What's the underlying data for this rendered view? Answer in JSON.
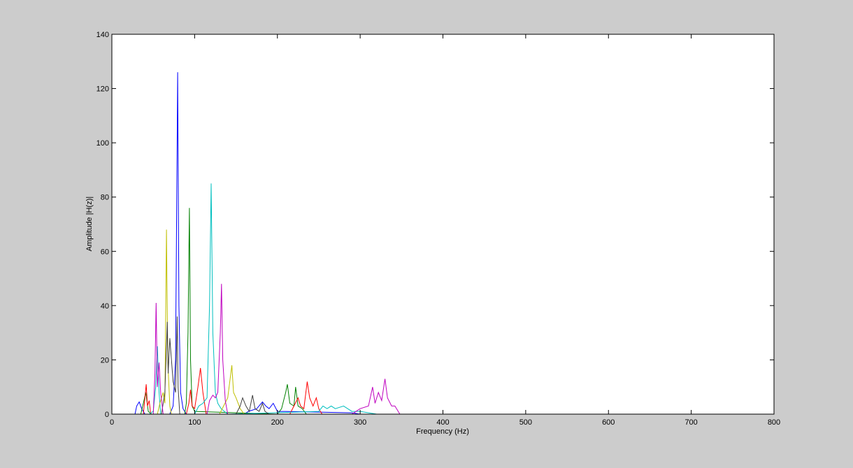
{
  "chart_data": {
    "type": "line",
    "title": "",
    "xlabel": "Frequency (Hz)",
    "ylabel": "Amplitude |H(z)|",
    "xlim": [
      0,
      800
    ],
    "ylim": [
      0,
      140
    ],
    "xticks": [
      0,
      100,
      200,
      300,
      400,
      500,
      600,
      700,
      800
    ],
    "yticks": [
      0,
      20,
      40,
      60,
      80,
      100,
      120,
      140
    ],
    "grid": false,
    "background": "#cccccc",
    "series": [
      {
        "color": "#0000ff",
        "points": [
          [
            0,
            0
          ],
          [
            28,
            0
          ],
          [
            30,
            3
          ],
          [
            33,
            4.5
          ],
          [
            36,
            2
          ],
          [
            40,
            0
          ],
          [
            70,
            0
          ],
          [
            74,
            3
          ],
          [
            77,
            20
          ],
          [
            79.5,
            126
          ],
          [
            81,
            40
          ],
          [
            83,
            8
          ],
          [
            86,
            2
          ],
          [
            90,
            0
          ],
          [
            160,
            0
          ],
          [
            165,
            1
          ],
          [
            175,
            2
          ],
          [
            182,
            4.5
          ],
          [
            186,
            3
          ],
          [
            190,
            2
          ],
          [
            195,
            4
          ],
          [
            200,
            1
          ],
          [
            210,
            1
          ],
          [
            290,
            0.5
          ],
          [
            300,
            0
          ],
          [
            775,
            0
          ]
        ]
      },
      {
        "color": "#008000",
        "points": [
          [
            0,
            0
          ],
          [
            35,
            0
          ],
          [
            38,
            4
          ],
          [
            41,
            8
          ],
          [
            44,
            1
          ],
          [
            48,
            0
          ],
          [
            88,
            0
          ],
          [
            90,
            4
          ],
          [
            92,
            30
          ],
          [
            93.7,
            76
          ],
          [
            95,
            20
          ],
          [
            97,
            3
          ],
          [
            100,
            1
          ],
          [
            200,
            0
          ],
          [
            205,
            2
          ],
          [
            210,
            8
          ],
          [
            212,
            11
          ],
          [
            215,
            4
          ],
          [
            220,
            3
          ],
          [
            222,
            10
          ],
          [
            225,
            3
          ],
          [
            230,
            2
          ],
          [
            235,
            0
          ],
          [
            775,
            0
          ]
        ]
      },
      {
        "color": "#ff0000",
        "points": [
          [
            0,
            0
          ],
          [
            38,
            0
          ],
          [
            40,
            6
          ],
          [
            41.5,
            11
          ],
          [
            43,
            3
          ],
          [
            45,
            5
          ],
          [
            47,
            0
          ],
          [
            90,
            0
          ],
          [
            93,
            4
          ],
          [
            95,
            9
          ],
          [
            97,
            3
          ],
          [
            100,
            2
          ],
          [
            104,
            10
          ],
          [
            107,
            17
          ],
          [
            110,
            8
          ],
          [
            114,
            0
          ],
          [
            215,
            0
          ],
          [
            220,
            3
          ],
          [
            225,
            6
          ],
          [
            228,
            3
          ],
          [
            232,
            2
          ],
          [
            236,
            12
          ],
          [
            239,
            6
          ],
          [
            243,
            3
          ],
          [
            247,
            6
          ],
          [
            250,
            2
          ],
          [
            254,
            0
          ],
          [
            775,
            0
          ]
        ]
      },
      {
        "color": "#00bfbf",
        "points": [
          [
            0,
            0
          ],
          [
            45,
            0
          ],
          [
            50,
            1
          ],
          [
            53,
            10
          ],
          [
            55,
            25
          ],
          [
            57,
            8
          ],
          [
            59,
            0
          ],
          [
            100,
            0
          ],
          [
            105,
            3
          ],
          [
            110,
            4
          ],
          [
            115,
            6
          ],
          [
            118,
            40
          ],
          [
            120,
            85
          ],
          [
            122,
            30
          ],
          [
            125,
            8
          ],
          [
            128,
            4
          ],
          [
            132,
            2
          ],
          [
            140,
            0
          ],
          [
            250,
            1
          ],
          [
            255,
            3
          ],
          [
            260,
            2
          ],
          [
            265,
            3
          ],
          [
            270,
            2
          ],
          [
            280,
            3
          ],
          [
            290,
            1
          ],
          [
            300,
            1
          ],
          [
            320,
            0
          ],
          [
            775,
            0
          ]
        ]
      },
      {
        "color": "#bfbf00",
        "points": [
          [
            0,
            0
          ],
          [
            55,
            0
          ],
          [
            58,
            4
          ],
          [
            62,
            8
          ],
          [
            64,
            4
          ],
          [
            66,
            68
          ],
          [
            67.5,
            20
          ],
          [
            70,
            3
          ],
          [
            72,
            0
          ],
          [
            130,
            0
          ],
          [
            135,
            3
          ],
          [
            140,
            6
          ],
          [
            145,
            18
          ],
          [
            147,
            8
          ],
          [
            150,
            6
          ],
          [
            155,
            2
          ],
          [
            160,
            0
          ],
          [
            775,
            0
          ]
        ]
      },
      {
        "color": "#404040",
        "points": [
          [
            0,
            0
          ],
          [
            60,
            0
          ],
          [
            64,
            8
          ],
          [
            67,
            34
          ],
          [
            68,
            15
          ],
          [
            70,
            28
          ],
          [
            72,
            20
          ],
          [
            74,
            12
          ],
          [
            77,
            8
          ],
          [
            79,
            36
          ],
          [
            80,
            10
          ],
          [
            82,
            0
          ],
          [
            150,
            0
          ],
          [
            155,
            3
          ],
          [
            158,
            6
          ],
          [
            162,
            3
          ],
          [
            166,
            1
          ],
          [
            170,
            7
          ],
          [
            173,
            2
          ],
          [
            178,
            1
          ],
          [
            182,
            4
          ],
          [
            185,
            1
          ],
          [
            190,
            0
          ],
          [
            775,
            0
          ]
        ]
      },
      {
        "color": "#bf00bf",
        "points": [
          [
            0,
            0
          ],
          [
            50,
            0
          ],
          [
            52,
            15
          ],
          [
            53.5,
            41
          ],
          [
            55,
            10
          ],
          [
            57,
            19
          ],
          [
            59,
            8
          ],
          [
            62,
            0
          ],
          [
            115,
            0
          ],
          [
            118,
            5
          ],
          [
            122,
            7
          ],
          [
            125,
            6
          ],
          [
            128,
            8
          ],
          [
            131,
            30
          ],
          [
            132.5,
            48
          ],
          [
            134,
            20
          ],
          [
            137,
            5
          ],
          [
            140,
            0
          ],
          [
            290,
            0
          ],
          [
            300,
            2
          ],
          [
            310,
            3
          ],
          [
            315,
            10
          ],
          [
            318,
            4
          ],
          [
            322,
            8
          ],
          [
            326,
            5
          ],
          [
            330,
            13
          ],
          [
            333,
            6
          ],
          [
            338,
            3
          ],
          [
            342,
            3
          ],
          [
            348,
            0
          ],
          [
            775,
            0
          ]
        ]
      }
    ]
  }
}
